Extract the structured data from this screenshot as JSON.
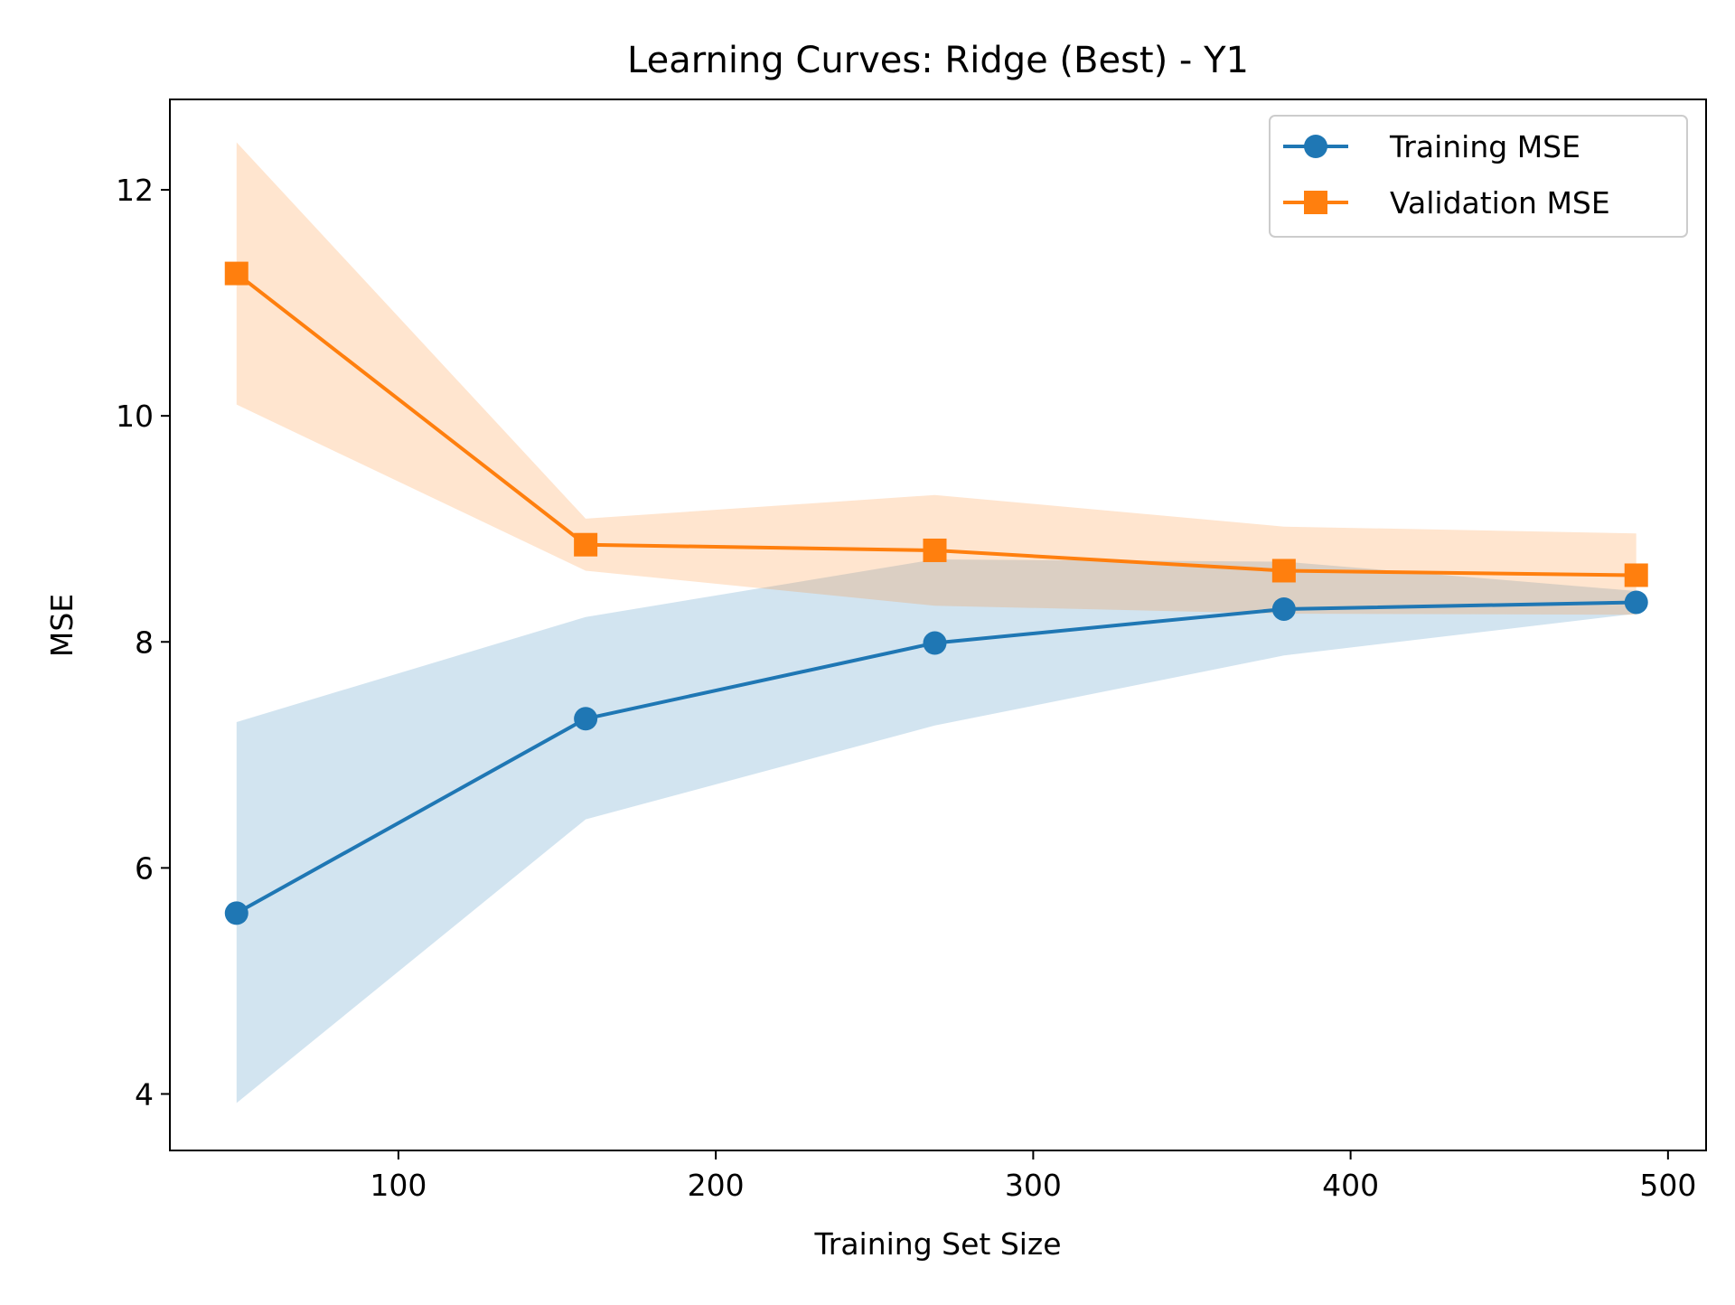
{
  "chart_data": {
    "type": "line",
    "title": "Learning Curves: Ridge (Best) - Y1",
    "xlabel": "Training Set Size",
    "ylabel": "MSE",
    "xlim": [
      28,
      512
    ],
    "ylim": [
      3.5,
      12.8
    ],
    "xticks": [
      100,
      200,
      300,
      400,
      500
    ],
    "yticks": [
      4,
      6,
      8,
      10,
      12
    ],
    "xtick_labels": [
      "100",
      "200",
      "300",
      "400",
      "500"
    ],
    "ytick_labels": [
      "4",
      "6",
      "8",
      "10",
      "12"
    ],
    "x": [
      49,
      159,
      269,
      379,
      490
    ],
    "series": [
      {
        "name": "Training MSE",
        "color": "#1f77b4",
        "marker": "circle",
        "values": [
          5.6,
          7.32,
          7.99,
          8.29,
          8.35
        ],
        "band_lower": [
          3.92,
          6.43,
          7.26,
          7.88,
          8.25
        ],
        "band_upper": [
          7.29,
          8.22,
          8.73,
          8.71,
          8.45
        ]
      },
      {
        "name": "Validation MSE",
        "color": "#ff7f0e",
        "marker": "square",
        "values": [
          11.26,
          8.86,
          8.81,
          8.63,
          8.59
        ],
        "band_lower": [
          10.1,
          8.63,
          8.32,
          8.25,
          8.24
        ],
        "band_upper": [
          12.42,
          9.09,
          9.3,
          9.02,
          8.96
        ]
      }
    ],
    "legend_position": "top-right",
    "grid": false
  }
}
